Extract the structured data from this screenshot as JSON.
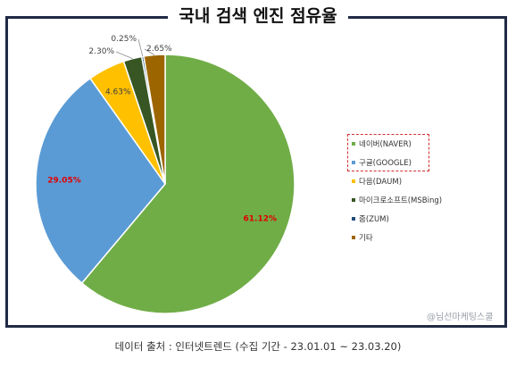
{
  "title": "국내 검색 엔진 점유율",
  "watermark": "@님선마케팅스쿨",
  "source": "데이터 출처 : 인터넷트렌드 (수집 기간 - 23.01.01 ~ 23.03.20)",
  "chart_data": {
    "type": "pie",
    "title": "국내 검색 엔진 점유율",
    "legend_position": "right",
    "slices": [
      {
        "name": "네이버(NAVER)",
        "value": 61.12,
        "label": "61.12%",
        "color": "#70ad47",
        "label_color": "#e00000"
      },
      {
        "name": "구글(GOOGLE)",
        "value": 29.05,
        "label": "29.05%",
        "color": "#5b9bd5",
        "label_color": "#e00000"
      },
      {
        "name": "다음(DAUM)",
        "value": 4.63,
        "label": "4.63%",
        "color": "#ffc000",
        "label_color": "#404040"
      },
      {
        "name": "마이크로소프트(MSBing)",
        "value": 2.3,
        "label": "2.30%",
        "color": "#375623",
        "label_color": "#404040"
      },
      {
        "name": "줌(ZUM)",
        "value": 0.25,
        "label": "0.25%",
        "color": "#1f4e79",
        "label_color": "#404040"
      },
      {
        "name": "기타",
        "value": 2.65,
        "label": "2.65%",
        "color": "#9c6500",
        "label_color": "#404040"
      }
    ]
  }
}
